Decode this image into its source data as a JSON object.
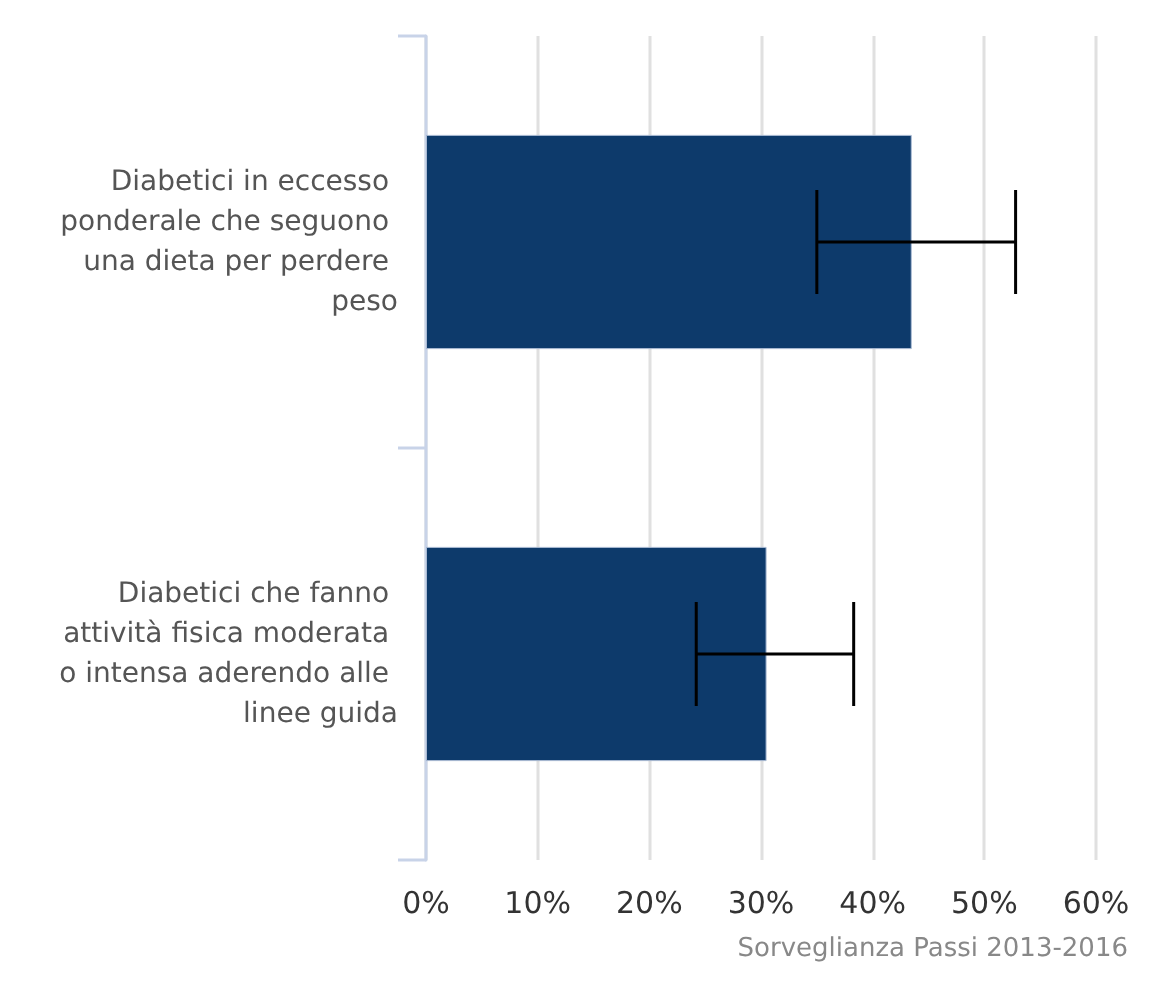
{
  "chart_data": {
    "type": "bar",
    "orientation": "horizontal",
    "categories": [
      "Diabetici in eccesso ponderale che seguono una dieta per perdere peso",
      "Diabetici che fanno attività fisica moderata o intensa aderendo alle linee guida"
    ],
    "values": [
      43.5,
      30.5
    ],
    "color": "#0d3a6b",
    "errors": [
      [
        35.0,
        52.8
      ],
      [
        24.2,
        38.3
      ]
    ],
    "xlim": [
      0,
      60
    ],
    "xticks": [
      {
        "value": 0,
        "label": "0%"
      },
      {
        "value": 10,
        "label": "10%"
      },
      {
        "value": 20,
        "label": "20%"
      },
      {
        "value": 30,
        "label": "30%"
      },
      {
        "value": 40,
        "label": "40%"
      },
      {
        "value": 50,
        "label": "50%"
      },
      {
        "value": 60,
        "label": "60%"
      }
    ],
    "grid": "x",
    "annotations": [
      "Sorveglianza Passi 2013-2016"
    ]
  }
}
